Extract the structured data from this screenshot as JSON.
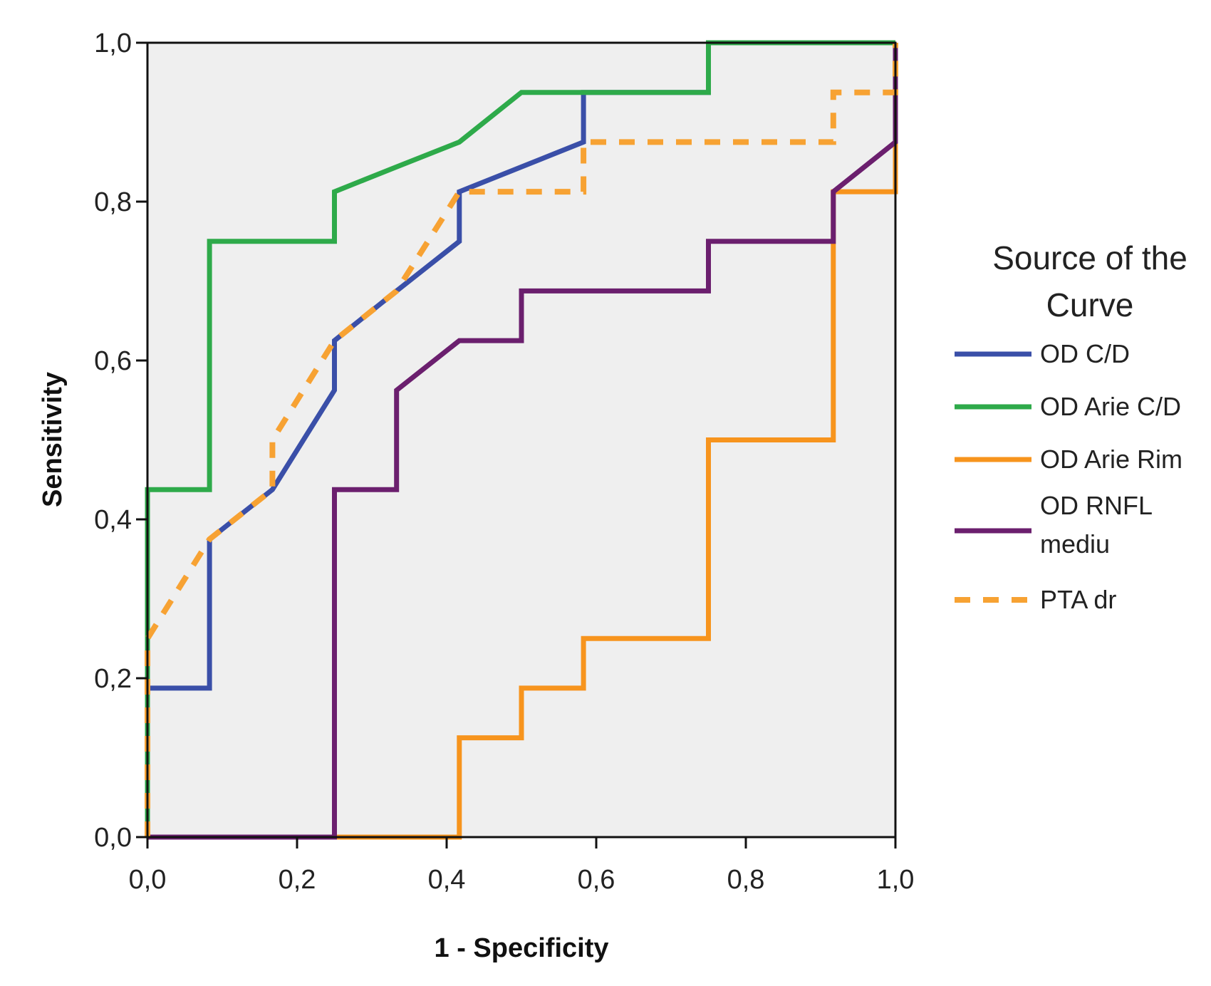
{
  "chart_data": {
    "type": "line",
    "title": "",
    "xlabel": "1 - Specificity",
    "ylabel": "Sensitivity",
    "xlim": [
      0,
      1
    ],
    "ylim": [
      0,
      1
    ],
    "xticks": [
      "0,0",
      "0,2",
      "0,4",
      "0,6",
      "0,8",
      "1,0"
    ],
    "yticks": [
      "0,0",
      "0,2",
      "0,4",
      "0,6",
      "0,8",
      "1,0"
    ],
    "grid": false,
    "plot_background": "#efefef",
    "legend_title": "Source of the Curve",
    "legend_position": "right",
    "series": [
      {
        "name": "OD C/D",
        "color": "#3a4fa8",
        "dashed": false,
        "points": [
          [
            0,
            0
          ],
          [
            0,
            0.1875
          ],
          [
            0.083,
            0.1875
          ],
          [
            0.083,
            0.375
          ],
          [
            0.167,
            0.4375
          ],
          [
            0.25,
            0.5625
          ],
          [
            0.25,
            0.625
          ],
          [
            0.333,
            0.6875
          ],
          [
            0.417,
            0.75
          ],
          [
            0.417,
            0.8125
          ],
          [
            0.583,
            0.875
          ],
          [
            0.583,
            0.9375
          ],
          [
            0.75,
            0.9375
          ],
          [
            0.75,
            1
          ],
          [
            1,
            1
          ]
        ]
      },
      {
        "name": "OD Arie C/D",
        "color": "#2eaa4a",
        "dashed": false,
        "points": [
          [
            0,
            0
          ],
          [
            0,
            0.4375
          ],
          [
            0.083,
            0.4375
          ],
          [
            0.083,
            0.75
          ],
          [
            0.25,
            0.75
          ],
          [
            0.25,
            0.8125
          ],
          [
            0.333,
            0.8438
          ],
          [
            0.417,
            0.875
          ],
          [
            0.5,
            0.9375
          ],
          [
            0.75,
            0.9375
          ],
          [
            0.75,
            1
          ],
          [
            1,
            1
          ]
        ]
      },
      {
        "name": "OD Arie Rim",
        "color": "#f7941d",
        "dashed": false,
        "points": [
          [
            0,
            0
          ],
          [
            0.417,
            0
          ],
          [
            0.417,
            0.125
          ],
          [
            0.5,
            0.125
          ],
          [
            0.5,
            0.1875
          ],
          [
            0.583,
            0.1875
          ],
          [
            0.583,
            0.25
          ],
          [
            0.75,
            0.25
          ],
          [
            0.75,
            0.5
          ],
          [
            0.917,
            0.5
          ],
          [
            0.917,
            0.8125
          ],
          [
            1,
            0.8125
          ],
          [
            1,
            1
          ]
        ]
      },
      {
        "name": "OD RNFL mediu",
        "color": "#6b1f6e",
        "dashed": false,
        "points": [
          [
            0,
            0
          ],
          [
            0.25,
            0
          ],
          [
            0.25,
            0.4375
          ],
          [
            0.333,
            0.4375
          ],
          [
            0.333,
            0.5625
          ],
          [
            0.417,
            0.625
          ],
          [
            0.5,
            0.625
          ],
          [
            0.5,
            0.6875
          ],
          [
            0.75,
            0.6875
          ],
          [
            0.75,
            0.75
          ],
          [
            0.917,
            0.75
          ],
          [
            0.917,
            0.8125
          ],
          [
            1,
            0.875
          ],
          [
            1,
            1
          ]
        ]
      },
      {
        "name": "PTA dr",
        "color": "#f7a233",
        "dashed": true,
        "points": [
          [
            0,
            0
          ],
          [
            0,
            0.25
          ],
          [
            0.083,
            0.375
          ],
          [
            0.167,
            0.4375
          ],
          [
            0.167,
            0.5
          ],
          [
            0.25,
            0.625
          ],
          [
            0.333,
            0.6875
          ],
          [
            0.417,
            0.8125
          ],
          [
            0.583,
            0.8125
          ],
          [
            0.583,
            0.875
          ],
          [
            0.917,
            0.875
          ],
          [
            0.917,
            0.9375
          ],
          [
            1,
            0.9375
          ],
          [
            1,
            1
          ]
        ]
      }
    ]
  }
}
